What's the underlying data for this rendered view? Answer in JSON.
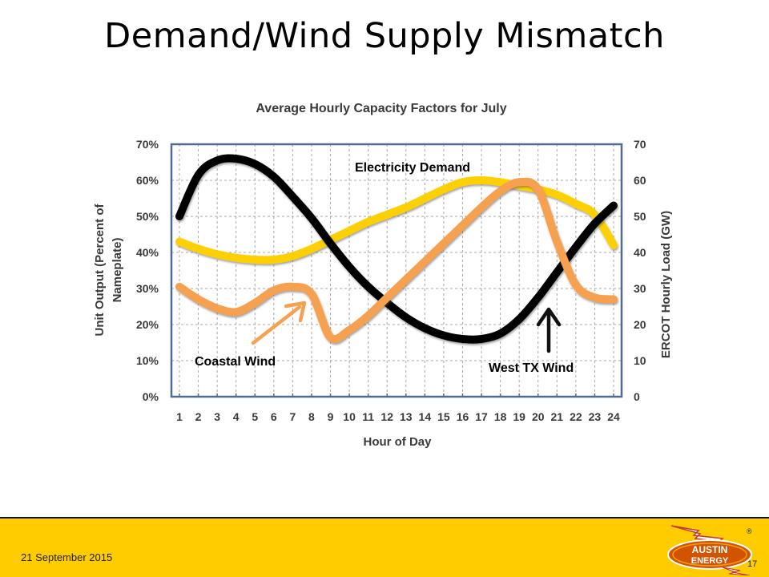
{
  "slide": {
    "title": "Demand/Wind Supply Mismatch",
    "date": "21 September 2015",
    "number": "17"
  },
  "logo": {
    "text_top": "AUSTIN",
    "text_bottom": "ENERGY",
    "registered": "®"
  },
  "colors": {
    "demand": "#000000",
    "coastal": "#f6a14f",
    "west_tx": "#ffd000",
    "footer": "#ffcc00",
    "plot_border": "#4f6b8f",
    "grid": "#a8a8a8"
  },
  "chart_data": {
    "type": "line",
    "title": "Average Hourly Capacity Factors for July",
    "xlabel": "Hour of Day",
    "ylabel_left": "Unit Output (Percent of Nameplate)",
    "ylabel_right": "ERCOT Hourly Load (GW)",
    "x": [
      1,
      2,
      3,
      4,
      5,
      6,
      7,
      8,
      9,
      10,
      11,
      12,
      13,
      14,
      15,
      16,
      17,
      18,
      19,
      20,
      21,
      22,
      23,
      24
    ],
    "x_ticks": [
      "1",
      "2",
      "3",
      "4",
      "5",
      "6",
      "7",
      "8",
      "9",
      "10",
      "11",
      "12",
      "13",
      "14",
      "15",
      "16",
      "17",
      "18",
      "19",
      "20",
      "21",
      "22",
      "23",
      "24"
    ],
    "y_left_ticks": [
      "0%",
      "10%",
      "20%",
      "30%",
      "40%",
      "50%",
      "60%",
      "70%"
    ],
    "y_right_ticks": [
      "0",
      "10",
      "20",
      "30",
      "40",
      "50",
      "60",
      "70"
    ],
    "ylim_left": [
      0,
      70
    ],
    "ylim_right": [
      0,
      70
    ],
    "grid": true,
    "series": [
      {
        "axis": "left",
        "color": "#ffd000",
        "values": [
          43,
          41,
          39.5,
          38.5,
          38,
          38,
          39,
          41,
          43.5,
          46,
          48.5,
          50.5,
          52.5,
          55,
          57.5,
          59.5,
          60,
          59.5,
          58.5,
          57.5,
          56,
          53.5,
          50.5,
          42
        ]
      },
      {
        "axis": "right",
        "color": "#000000",
        "values": [
          50,
          61.5,
          65.5,
          66,
          64.5,
          61,
          55.5,
          49.5,
          42.5,
          36,
          30.5,
          26,
          22,
          19,
          17,
          16,
          16,
          17.5,
          21.5,
          27.5,
          34.5,
          41.5,
          48,
          53
        ]
      },
      {
        "axis": "left",
        "color": "#f6a14f",
        "values": [
          30.5,
          27,
          24.5,
          23.5,
          26,
          29.5,
          30.5,
          28.5,
          16.5,
          18.5,
          22.5,
          27.5,
          32.5,
          37.5,
          42.5,
          47.5,
          52.5,
          57,
          59.5,
          57.5,
          43,
          31,
          27.5,
          27
        ]
      }
    ],
    "annotations": [
      {
        "text": "Electricity Demand"
      },
      {
        "text": "Coastal Wind"
      },
      {
        "text": "West TX Wind"
      }
    ]
  }
}
